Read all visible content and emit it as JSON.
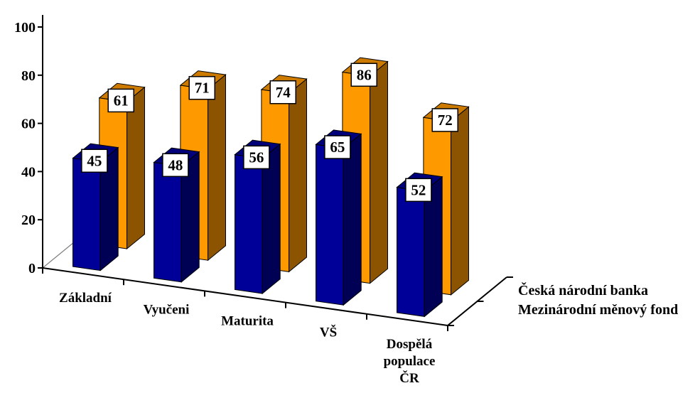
{
  "chart_data": {
    "type": "bar",
    "categories": [
      "Základní",
      "Vyučeni",
      "Maturita",
      "VŠ",
      "Dospělá populace ČR"
    ],
    "category_label_lines": [
      [
        "Základní"
      ],
      [
        "Vyučeni"
      ],
      [
        "Maturita"
      ],
      [
        "VŠ"
      ],
      [
        "Dospělá",
        "populace",
        "ČR"
      ]
    ],
    "series": [
      {
        "name": "Česká národní banka",
        "values": [
          61,
          71,
          74,
          86,
          72
        ],
        "color": "#FF9900"
      },
      {
        "name": "Mezinárodní měnový fond",
        "values": [
          45,
          48,
          56,
          65,
          52
        ],
        "color": "#000099"
      }
    ],
    "ylim": [
      0,
      100
    ],
    "yticks": [
      "0",
      "20",
      "40",
      "60",
      "80",
      "100"
    ],
    "three_d": true,
    "data_labels": true,
    "grid": false
  }
}
